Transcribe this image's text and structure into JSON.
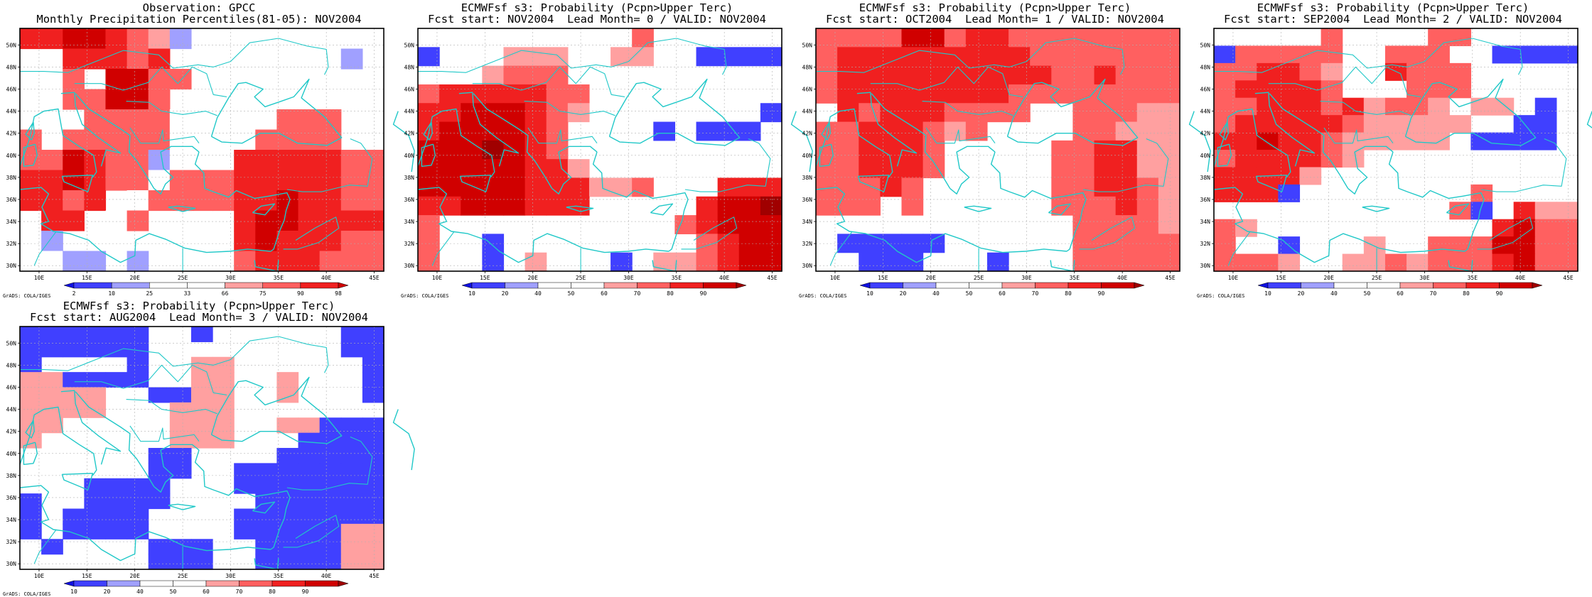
{
  "legend_colors": [
    "#1010e0",
    "#4040ff",
    "#a0a0ff",
    "#ffffff",
    "#ffffff",
    "#ffa0a0",
    "#ff6060",
    "#f02020",
    "#d00000",
    "#a00000"
  ],
  "lon_ticks": [
    "10E",
    "15E",
    "20E",
    "25E",
    "30E",
    "35E",
    "40E",
    "45E"
  ],
  "lat_ticks": [
    "30N",
    "32N",
    "34N",
    "36N",
    "38N",
    "40N",
    "42N",
    "44N",
    "46N",
    "48N",
    "50N"
  ],
  "grads_credit": "GrADS: COLA/IGES",
  "panels": [
    {
      "title1": "Observation: GPCC",
      "title2": "Monthly Precipitation Percentiles(81-05): NOV2004",
      "colorbar_labels": [
        "2",
        "10",
        "25",
        "33",
        "66",
        "75",
        "90",
        "98"
      ],
      "colorbar_colors": [
        "#1010e0",
        "#4040ff",
        "#a0a0ff",
        "#ffffff",
        "#ffffff",
        "#ffa0a0",
        "#ff6060",
        "#f02020",
        "#d00000"
      ],
      "grid": [
        [
          7,
          7,
          8,
          8,
          7,
          6,
          5,
          2,
          0,
          0,
          0,
          0,
          0,
          0,
          0,
          0,
          0
        ],
        [
          0,
          0,
          7,
          7,
          7,
          6,
          7,
          0,
          0,
          0,
          0,
          0,
          0,
          0,
          0,
          2,
          0
        ],
        [
          0,
          0,
          6,
          0,
          8,
          8,
          6,
          6,
          0,
          0,
          0,
          0,
          0,
          0,
          0,
          0,
          0
        ],
        [
          0,
          0,
          6,
          6,
          8,
          8,
          6,
          0,
          0,
          0,
          0,
          0,
          0,
          0,
          0,
          0,
          0
        ],
        [
          0,
          0,
          0,
          6,
          6,
          6,
          6,
          3,
          0,
          0,
          0,
          0,
          6,
          6,
          6,
          0,
          0
        ],
        [
          6,
          0,
          6,
          6,
          6,
          6,
          6,
          3,
          0,
          0,
          0,
          6,
          6,
          6,
          6,
          0,
          0
        ],
        [
          6,
          6,
          8,
          7,
          6,
          6,
          2,
          3,
          0,
          0,
          7,
          7,
          7,
          7,
          7,
          6,
          6
        ],
        [
          7,
          7,
          8,
          7,
          6,
          6,
          3,
          6,
          6,
          6,
          7,
          7,
          7,
          7,
          7,
          6,
          6
        ],
        [
          7,
          7,
          6,
          7,
          0,
          3,
          6,
          6,
          6,
          6,
          7,
          7,
          8,
          7,
          7,
          6,
          6
        ],
        [
          0,
          7,
          7,
          0,
          3,
          6,
          0,
          0,
          0,
          0,
          7,
          8,
          8,
          7,
          7,
          7,
          7
        ],
        [
          0,
          2,
          0,
          0,
          0,
          0,
          0,
          0,
          0,
          0,
          7,
          8,
          7,
          7,
          7,
          6,
          6
        ],
        [
          0,
          3,
          2,
          2,
          0,
          2,
          0,
          0,
          0,
          0,
          6,
          7,
          7,
          7,
          6,
          6,
          6
        ]
      ]
    },
    {
      "title1": "ECMWFsf s3: Probability (Pcpn>Upper Terc)",
      "title2": "Fcst start: NOV2004  Lead Month= 0 / VALID: NOV2004",
      "colorbar_labels": [
        "10",
        "20",
        "40",
        "50",
        "60",
        "70",
        "80",
        "90"
      ],
      "grid": [
        [
          0,
          0,
          0,
          0,
          0,
          0,
          0,
          0,
          0,
          0,
          6,
          0,
          0,
          0,
          0,
          0,
          0
        ],
        [
          1,
          0,
          0,
          0,
          5,
          5,
          5,
          0,
          0,
          5,
          5,
          0,
          0,
          1,
          1,
          1,
          1
        ],
        [
          0,
          0,
          0,
          5,
          6,
          6,
          6,
          0,
          0,
          0,
          0,
          0,
          0,
          0,
          0,
          0,
          0
        ],
        [
          6,
          7,
          7,
          7,
          7,
          7,
          6,
          6,
          0,
          0,
          0,
          0,
          0,
          0,
          0,
          0,
          0
        ],
        [
          7,
          7,
          8,
          8,
          8,
          7,
          6,
          5,
          0,
          0,
          0,
          0,
          0,
          0,
          0,
          0,
          1
        ],
        [
          7,
          8,
          8,
          8,
          8,
          7,
          6,
          0,
          0,
          0,
          0,
          1,
          0,
          1,
          1,
          1,
          0
        ],
        [
          8,
          8,
          8,
          9,
          8,
          7,
          6,
          0,
          0,
          0,
          0,
          0,
          0,
          0,
          0,
          0,
          0
        ],
        [
          8,
          8,
          8,
          8,
          8,
          7,
          7,
          5,
          0,
          0,
          0,
          0,
          0,
          0,
          0,
          0,
          0
        ],
        [
          8,
          8,
          8,
          8,
          8,
          7,
          7,
          7,
          5,
          5,
          6,
          0,
          0,
          0,
          7,
          7,
          7
        ],
        [
          7,
          7,
          8,
          8,
          8,
          7,
          7,
          7,
          0,
          0,
          0,
          0,
          0,
          7,
          8,
          8,
          9
        ],
        [
          6,
          0,
          0,
          0,
          0,
          0,
          0,
          0,
          0,
          0,
          0,
          0,
          6,
          7,
          8,
          8,
          8
        ],
        [
          6,
          0,
          0,
          1,
          0,
          0,
          0,
          0,
          0,
          0,
          0,
          0,
          0,
          6,
          7,
          8,
          8
        ],
        [
          6,
          0,
          0,
          1,
          0,
          5,
          0,
          0,
          0,
          1,
          0,
          5,
          5,
          6,
          7,
          8,
          8
        ]
      ]
    },
    {
      "title1": "ECMWFsf s3: Probability (Pcpn>Upper Terc)",
      "title2": "Fcst start: OCT2004  Lead Month= 1 / VALID: NOV2004",
      "colorbar_labels": [
        "10",
        "20",
        "40",
        "50",
        "60",
        "70",
        "80",
        "90"
      ],
      "grid": [
        [
          6,
          6,
          6,
          6,
          8,
          8,
          6,
          7,
          7,
          6,
          6,
          6,
          6,
          6,
          6,
          6,
          6
        ],
        [
          6,
          7,
          7,
          7,
          7,
          7,
          7,
          7,
          7,
          7,
          6,
          6,
          6,
          6,
          6,
          6,
          6
        ],
        [
          6,
          7,
          7,
          7,
          7,
          7,
          7,
          7,
          7,
          7,
          7,
          6,
          6,
          7,
          6,
          6,
          6
        ],
        [
          6,
          7,
          7,
          7,
          7,
          7,
          7,
          7,
          7,
          6,
          6,
          6,
          6,
          6,
          6,
          6,
          6
        ],
        [
          0,
          7,
          6,
          7,
          7,
          7,
          6,
          6,
          6,
          6,
          0,
          0,
          6,
          6,
          6,
          5,
          5
        ],
        [
          6,
          6,
          7,
          7,
          7,
          6,
          5,
          6,
          0,
          0,
          0,
          0,
          6,
          6,
          5,
          5,
          5
        ],
        [
          6,
          6,
          7,
          7,
          7,
          6,
          0,
          0,
          0,
          0,
          0,
          6,
          6,
          7,
          7,
          5,
          5
        ],
        [
          6,
          6,
          7,
          7,
          7,
          6,
          0,
          0,
          0,
          0,
          0,
          6,
          6,
          7,
          7,
          5,
          5
        ],
        [
          6,
          6,
          6,
          7,
          6,
          0,
          0,
          0,
          0,
          0,
          0,
          6,
          6,
          7,
          7,
          6,
          5
        ],
        [
          6,
          6,
          6,
          0,
          6,
          0,
          0,
          0,
          0,
          0,
          0,
          6,
          6,
          6,
          7,
          6,
          5
        ],
        [
          0,
          0,
          0,
          0,
          0,
          0,
          0,
          0,
          0,
          0,
          0,
          0,
          6,
          6,
          6,
          6,
          5
        ],
        [
          0,
          1,
          1,
          1,
          1,
          1,
          0,
          0,
          0,
          0,
          0,
          0,
          6,
          6,
          6,
          6,
          6
        ],
        [
          0,
          0,
          1,
          1,
          1,
          0,
          0,
          0,
          1,
          0,
          0,
          0,
          6,
          6,
          6,
          6,
          6
        ]
      ]
    },
    {
      "title1": "ECMWFsf s3: Probability (Pcpn>Upper Terc)",
      "title2": "Fcst start: SEP2004  Lead Month= 2 / VALID: NOV2004",
      "colorbar_labels": [
        "10",
        "20",
        "40",
        "50",
        "60",
        "70",
        "80",
        "90"
      ],
      "grid": [
        [
          0,
          0,
          0,
          0,
          0,
          6,
          0,
          0,
          0,
          0,
          6,
          6,
          0,
          0,
          0,
          0,
          0
        ],
        [
          1,
          6,
          6,
          6,
          6,
          6,
          0,
          0,
          6,
          6,
          6,
          0,
          0,
          1,
          1,
          1,
          1
        ],
        [
          6,
          6,
          7,
          7,
          6,
          5,
          0,
          0,
          7,
          6,
          6,
          6,
          0,
          0,
          0,
          0,
          0
        ],
        [
          6,
          7,
          7,
          7,
          7,
          6,
          0,
          0,
          0,
          6,
          6,
          6,
          0,
          0,
          0,
          0,
          0
        ],
        [
          6,
          6,
          7,
          7,
          7,
          6,
          7,
          5,
          6,
          6,
          5,
          0,
          5,
          5,
          0,
          1,
          0
        ],
        [
          6,
          7,
          7,
          7,
          7,
          7,
          6,
          5,
          5,
          5,
          5,
          5,
          0,
          0,
          1,
          1,
          0
        ],
        [
          7,
          7,
          8,
          7,
          7,
          6,
          5,
          5,
          5,
          5,
          5,
          0,
          1,
          1,
          1,
          1,
          0
        ],
        [
          6,
          7,
          7,
          7,
          7,
          6,
          5,
          0,
          0,
          0,
          0,
          0,
          0,
          0,
          0,
          0,
          0
        ],
        [
          7,
          7,
          7,
          7,
          5,
          0,
          0,
          0,
          0,
          0,
          0,
          0,
          0,
          0,
          0,
          0,
          0
        ],
        [
          7,
          7,
          7,
          1,
          0,
          0,
          0,
          0,
          0,
          0,
          0,
          0,
          6,
          0,
          0,
          0,
          0
        ],
        [
          0,
          0,
          0,
          0,
          0,
          0,
          0,
          0,
          0,
          0,
          0,
          6,
          1,
          0,
          7,
          5,
          5
        ],
        [
          6,
          5,
          0,
          0,
          0,
          0,
          0,
          0,
          0,
          0,
          0,
          0,
          0,
          7,
          8,
          6,
          6
        ],
        [
          6,
          0,
          0,
          1,
          0,
          0,
          0,
          5,
          0,
          0,
          6,
          6,
          6,
          8,
          8,
          6,
          6
        ],
        [
          6,
          6,
          6,
          5,
          0,
          0,
          5,
          5,
          6,
          5,
          6,
          6,
          6,
          7,
          8,
          6,
          6
        ]
      ]
    },
    {
      "title1": "ECMWFsf s3: Probability (Pcpn>Upper Terc)",
      "title2": "Fcst start: AUG2004  Lead Month= 3 / VALID: NOV2004",
      "colorbar_labels": [
        "10",
        "20",
        "40",
        "50",
        "60",
        "70",
        "80",
        "90"
      ],
      "grid": [
        [
          1,
          1,
          1,
          1,
          1,
          1,
          0,
          0,
          1,
          0,
          0,
          0,
          0,
          0,
          0,
          1,
          1
        ],
        [
          1,
          1,
          1,
          1,
          1,
          1,
          0,
          0,
          0,
          0,
          0,
          0,
          0,
          0,
          0,
          1,
          1
        ],
        [
          1,
          0,
          0,
          0,
          0,
          1,
          0,
          0,
          5,
          5,
          0,
          0,
          0,
          0,
          0,
          0,
          1
        ],
        [
          5,
          5,
          1,
          1,
          1,
          1,
          0,
          0,
          5,
          5,
          0,
          0,
          5,
          0,
          0,
          0,
          1
        ],
        [
          5,
          5,
          5,
          5,
          0,
          0,
          1,
          1,
          5,
          5,
          0,
          0,
          5,
          0,
          0,
          0,
          1
        ],
        [
          5,
          5,
          5,
          5,
          0,
          0,
          0,
          5,
          5,
          5,
          0,
          0,
          0,
          0,
          0,
          0,
          0
        ],
        [
          5,
          5,
          0,
          0,
          0,
          0,
          0,
          5,
          5,
          5,
          0,
          0,
          5,
          5,
          1,
          1,
          1
        ],
        [
          5,
          0,
          0,
          0,
          0,
          0,
          0,
          5,
          5,
          5,
          0,
          0,
          0,
          1,
          1,
          1,
          1
        ],
        [
          0,
          0,
          0,
          0,
          0,
          0,
          1,
          1,
          0,
          0,
          0,
          0,
          1,
          1,
          1,
          1,
          1
        ],
        [
          0,
          0,
          0,
          0,
          0,
          0,
          1,
          1,
          0,
          0,
          1,
          1,
          1,
          1,
          1,
          1,
          1
        ],
        [
          0,
          0,
          0,
          1,
          1,
          1,
          1,
          0,
          0,
          0,
          1,
          1,
          1,
          1,
          1,
          1,
          1
        ],
        [
          1,
          0,
          0,
          1,
          1,
          1,
          1,
          0,
          0,
          0,
          0,
          1,
          1,
          1,
          1,
          1,
          1
        ],
        [
          1,
          0,
          1,
          1,
          1,
          1,
          0,
          0,
          0,
          0,
          1,
          1,
          1,
          1,
          1,
          1,
          1
        ],
        [
          1,
          0,
          1,
          1,
          1,
          1,
          0,
          0,
          0,
          0,
          1,
          1,
          1,
          1,
          1,
          5,
          5
        ],
        [
          0,
          1,
          0,
          0,
          0,
          0,
          1,
          1,
          1,
          0,
          0,
          1,
          1,
          1,
          1,
          5,
          5
        ],
        [
          0,
          0,
          0,
          0,
          0,
          0,
          1,
          1,
          1,
          0,
          0,
          1,
          1,
          1,
          1,
          5,
          5
        ]
      ]
    }
  ]
}
